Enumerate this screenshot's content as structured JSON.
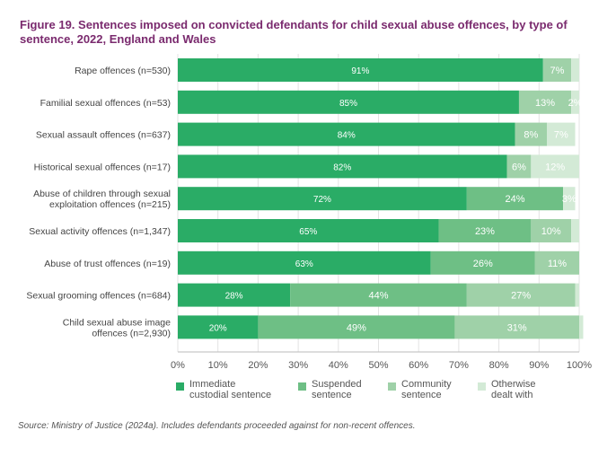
{
  "title": "Figure 19. Sentences imposed on convicted defendants for child sexual abuse offences, by type of sentence, 2022, England and Wales",
  "source": "Source: Ministry of Justice (2024a). Includes defendants proceeded against for non-recent offences.",
  "colors": {
    "immediate": "#2aac66",
    "suspended": "#6ebf85",
    "community": "#9fd1a8",
    "otherwise": "#d3ead6"
  },
  "chart_data": {
    "type": "bar",
    "orientation": "horizontal",
    "stacked": true,
    "title": "Figure 19. Sentences imposed on convicted defendants for child sexual abuse offences, by type of sentence, 2022, England and Wales",
    "categories": [
      "Rape offences (n=530)",
      "Familial sexual offences (n=53)",
      "Sexual assault offences (n=637)",
      "Historical sexual offences  (n=17)",
      "Abuse of children through sexual exploitation offences (n=215)",
      "Sexual activity offences (n=1,347)",
      "Abuse of trust offences (n=19)",
      "Sexual grooming offences (n=684)",
      "Child sexual abuse image offences (n=2,930)"
    ],
    "category_lines": [
      [
        "Rape offences (n=530)"
      ],
      [
        "Familial sexual offences (n=53)"
      ],
      [
        "Sexual assault offences (n=637)"
      ],
      [
        "Historical sexual offences  (n=17)"
      ],
      [
        "Abuse of children through sexual",
        "exploitation offences (n=215)"
      ],
      [
        "Sexual activity offences (n=1,347)"
      ],
      [
        "Abuse of trust offences (n=19)"
      ],
      [
        "Sexual grooming offences (n=684)"
      ],
      [
        "Child sexual abuse image",
        "offences (n=2,930)"
      ]
    ],
    "series": [
      {
        "name": "Immediate custodial sentence",
        "legend_lines": [
          "Immediate",
          "custodial sentence"
        ],
        "color_key": "immediate",
        "values": [
          91,
          85,
          84,
          82,
          72,
          65,
          63,
          28,
          20
        ]
      },
      {
        "name": "Suspended sentence",
        "legend_lines": [
          "Suspended",
          "sentence"
        ],
        "color_key": "suspended",
        "values": [
          0,
          0,
          0,
          0,
          24,
          23,
          26,
          44,
          49
        ]
      },
      {
        "name": "Community sentence",
        "legend_lines": [
          "Community",
          "sentence"
        ],
        "color_key": "community",
        "values": [
          7,
          13,
          8,
          6,
          0,
          10,
          11,
          27,
          31
        ]
      },
      {
        "name": "Otherwise dealt with",
        "legend_lines": [
          "Otherwise",
          "dealt with"
        ],
        "color_key": "otherwise",
        "values": [
          2,
          2,
          7,
          12,
          3,
          2,
          0,
          1,
          1
        ]
      }
    ],
    "data_labels": [
      [
        "91%",
        null,
        "7%",
        null
      ],
      [
        "85%",
        null,
        "13%",
        "2%"
      ],
      [
        "84%",
        null,
        "8%",
        "7%"
      ],
      [
        "82%",
        null,
        "6%",
        "12%"
      ],
      [
        "72%",
        "24%",
        null,
        "3%"
      ],
      [
        "65%",
        "23%",
        "10%",
        null
      ],
      [
        "63%",
        "26%",
        "11%",
        null
      ],
      [
        "28%",
        "44%",
        "27%",
        null
      ],
      [
        "20%",
        "49%",
        "31%",
        null
      ]
    ],
    "x_ticks": [
      "0%",
      "10%",
      "20%",
      "30%",
      "40%",
      "50%",
      "60%",
      "70%",
      "80%",
      "90%",
      "100%"
    ],
    "xlim": [
      0,
      100
    ],
    "xlabel": "",
    "ylabel": "",
    "grid": true,
    "legend_position": "bottom"
  }
}
